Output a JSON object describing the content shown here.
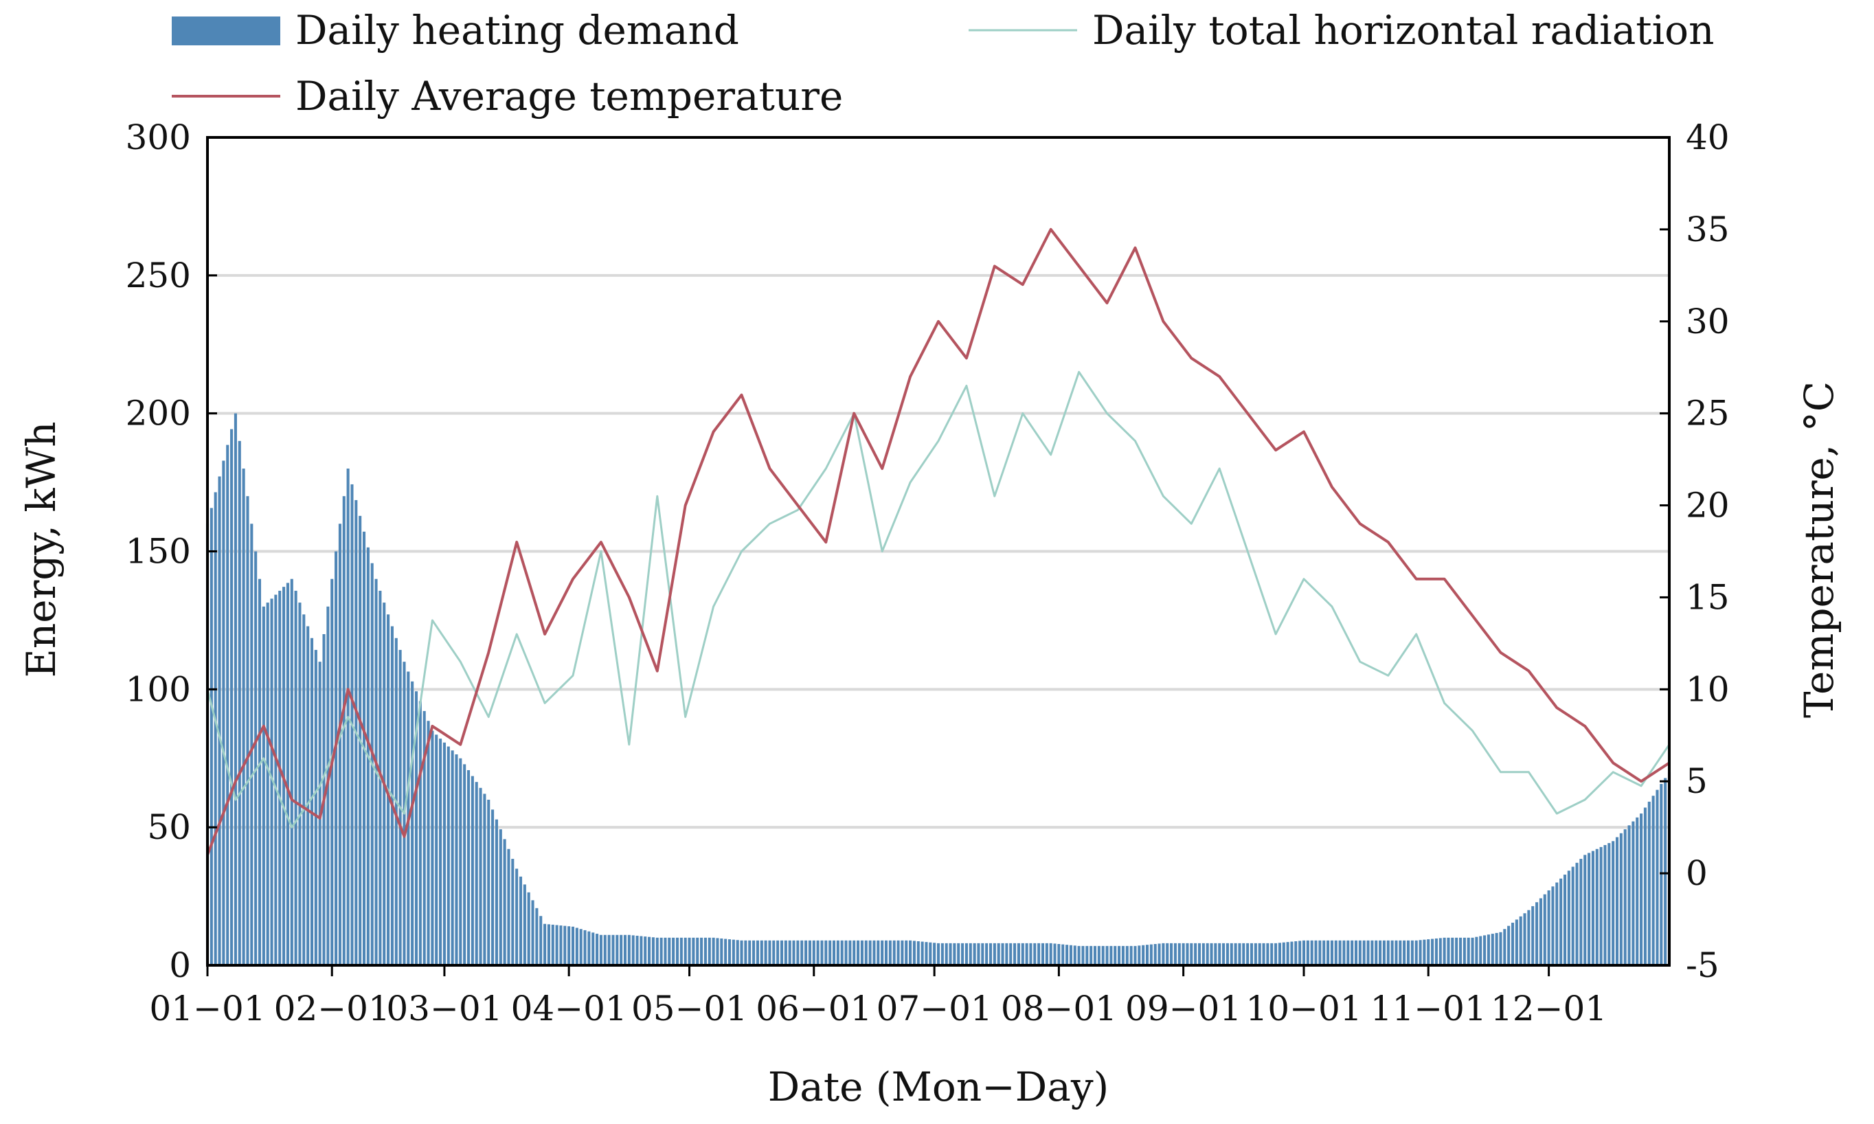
{
  "chart_data": {
    "type": "bar+line",
    "title": "",
    "xlabel": "Date (Mon−Day)",
    "ylabel_left": "Energy, kWh",
    "ylabel_right": "Temperature, °C",
    "ylim_left": [
      0,
      300
    ],
    "ylim_right": [
      -5,
      40
    ],
    "yticks_left": [
      "0",
      "50",
      "100",
      "150",
      "200",
      "250",
      "300"
    ],
    "yticks_right": [
      "-5",
      "0",
      "5",
      "10",
      "15",
      "20",
      "25",
      "30",
      "35",
      "40"
    ],
    "x_range_days": [
      1,
      365
    ],
    "xticks": [
      {
        "label": "01−01",
        "day": 1
      },
      {
        "label": "02−01",
        "day": 32
      },
      {
        "label": "03−01",
        "day": 60
      },
      {
        "label": "04−01",
        "day": 91
      },
      {
        "label": "05−01",
        "day": 121
      },
      {
        "label": "06−01",
        "day": 152
      },
      {
        "label": "07−01",
        "day": 182
      },
      {
        "label": "08−01",
        "day": 213
      },
      {
        "label": "09−01",
        "day": 244
      },
      {
        "label": "10−01",
        "day": 274
      },
      {
        "label": "11−01",
        "day": 305
      },
      {
        "label": "12−01",
        "day": 335
      }
    ],
    "grid": "horizontal",
    "legend_position": "top",
    "colors": {
      "heating": "#4F86B6",
      "radiation": "#9ECFC6",
      "temperature": "#B5545F",
      "grid": "#D9D9D9",
      "axis": "#000000"
    },
    "series": [
      {
        "name": "Daily heating demand",
        "type": "bar",
        "axis": "left",
        "days": [
          1,
          8,
          15,
          22,
          29,
          36,
          43,
          50,
          57,
          64,
          71,
          78,
          85,
          92,
          99,
          106,
          113,
          120,
          127,
          134,
          141,
          148,
          155,
          162,
          169,
          176,
          183,
          190,
          197,
          204,
          211,
          218,
          225,
          232,
          239,
          246,
          253,
          260,
          267,
          274,
          281,
          288,
          295,
          302,
          309,
          316,
          323,
          330,
          337,
          344,
          351,
          358,
          365
        ],
        "values": [
          160,
          200,
          130,
          140,
          110,
          180,
          140,
          110,
          85,
          75,
          60,
          35,
          15,
          14,
          11,
          11,
          10,
          10,
          10,
          9,
          9,
          9,
          9,
          9,
          9,
          9,
          8,
          8,
          8,
          8,
          8,
          7,
          7,
          7,
          8,
          8,
          8,
          8,
          8,
          9,
          9,
          9,
          9,
          9,
          10,
          10,
          12,
          20,
          30,
          40,
          45,
          55,
          70
        ]
      },
      {
        "name": "Daily total horizontal radiation",
        "type": "line",
        "axis": "left",
        "days": [
          1,
          8,
          15,
          22,
          29,
          36,
          43,
          50,
          57,
          64,
          71,
          78,
          85,
          92,
          99,
          106,
          113,
          120,
          127,
          134,
          141,
          148,
          155,
          162,
          169,
          176,
          183,
          190,
          197,
          204,
          211,
          218,
          225,
          232,
          239,
          246,
          253,
          260,
          267,
          274,
          281,
          288,
          295,
          302,
          309,
          316,
          323,
          330,
          337,
          344,
          351,
          358,
          365
        ],
        "values": [
          100,
          60,
          75,
          50,
          65,
          90,
          70,
          55,
          125,
          110,
          90,
          120,
          95,
          105,
          150,
          80,
          170,
          90,
          130,
          150,
          160,
          165,
          180,
          200,
          150,
          175,
          190,
          210,
          170,
          200,
          185,
          215,
          200,
          190,
          170,
          160,
          180,
          150,
          120,
          140,
          130,
          110,
          105,
          120,
          95,
          85,
          70,
          70,
          55,
          60,
          70,
          65,
          80
        ]
      },
      {
        "name": "Daily Average temperature",
        "type": "line",
        "axis": "right",
        "days": [
          1,
          8,
          15,
          22,
          29,
          36,
          43,
          50,
          57,
          64,
          71,
          78,
          85,
          92,
          99,
          106,
          113,
          120,
          127,
          134,
          141,
          148,
          155,
          162,
          169,
          176,
          183,
          190,
          197,
          204,
          211,
          218,
          225,
          232,
          239,
          246,
          253,
          260,
          267,
          274,
          281,
          288,
          295,
          302,
          309,
          316,
          323,
          330,
          337,
          344,
          351,
          358,
          365
        ],
        "values": [
          1,
          5,
          8,
          4,
          3,
          10,
          6,
          2,
          8,
          7,
          12,
          18,
          13,
          16,
          18,
          15,
          11,
          20,
          24,
          26,
          22,
          20,
          18,
          25,
          22,
          27,
          30,
          28,
          33,
          32,
          35,
          33,
          31,
          34,
          30,
          28,
          27,
          25,
          23,
          24,
          21,
          19,
          18,
          16,
          16,
          14,
          12,
          11,
          9,
          8,
          6,
          5,
          6
        ]
      }
    ]
  }
}
